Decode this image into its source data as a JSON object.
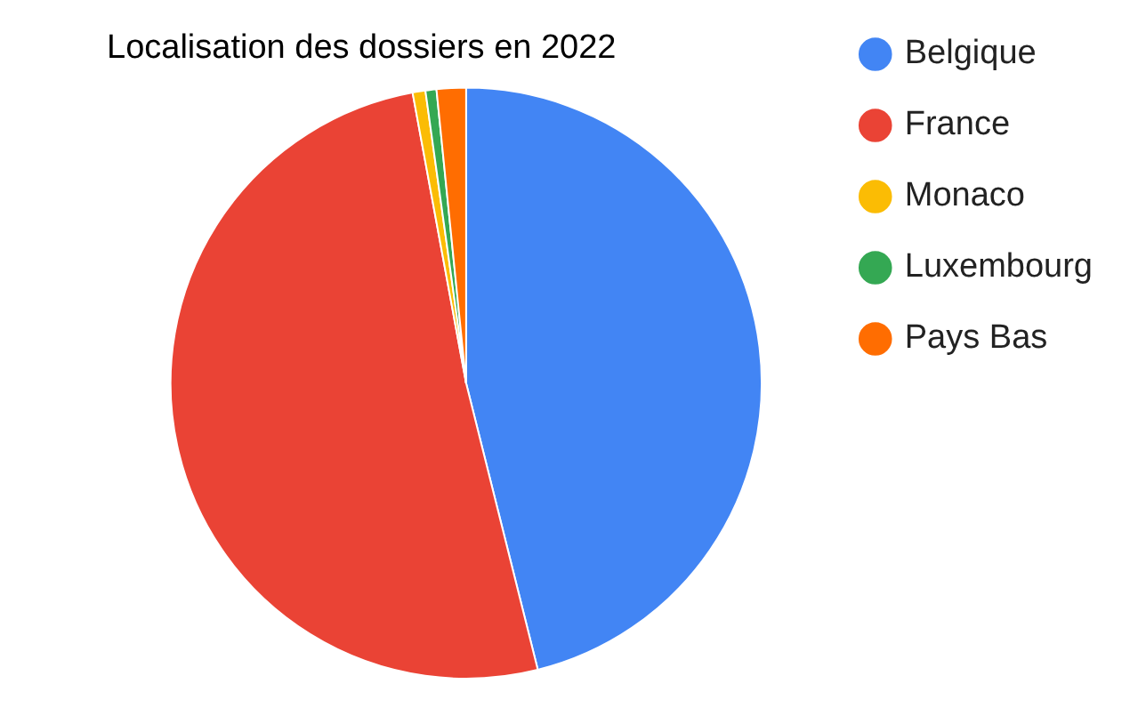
{
  "chart_data": {
    "type": "pie",
    "title": "Localisation des dossiers en 2022",
    "categories": [
      "Belgique",
      "France",
      "Monaco",
      "Luxembourg",
      "Pays Bas"
    ],
    "values": [
      46.1,
      51,
      0.7,
      0.6,
      1.6
    ],
    "colors": [
      "#4285f4",
      "#ea4335",
      "#fbbc04",
      "#34a853",
      "#ff6d01"
    ],
    "legend": "right"
  }
}
